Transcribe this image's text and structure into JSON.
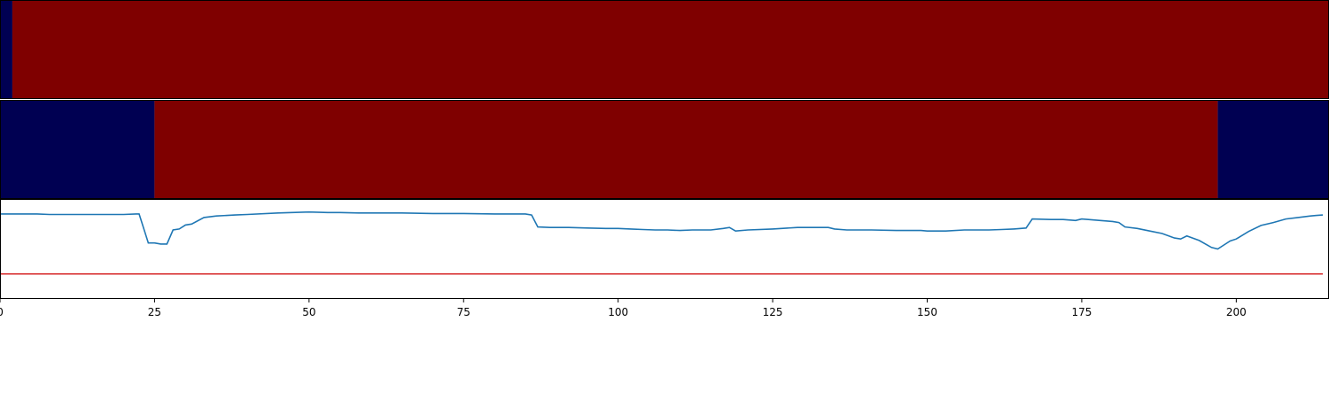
{
  "colors": {
    "low": "#000052",
    "high": "#7f0000",
    "line": "#1f77b4",
    "threshold": "#d62728",
    "background": "#ffffff",
    "axis": "#000000"
  },
  "chart_data": [
    {
      "type": "heatmap",
      "x_range": [
        0,
        215
      ],
      "segments": [
        {
          "start": 0,
          "end": 2,
          "state": "low"
        },
        {
          "start": 2,
          "end": 215,
          "state": "high"
        }
      ]
    },
    {
      "type": "heatmap",
      "x_range": [
        0,
        215
      ],
      "segments": [
        {
          "start": 0,
          "end": 25,
          "state": "low"
        },
        {
          "start": 25,
          "end": 197,
          "state": "high"
        },
        {
          "start": 197,
          "end": 215,
          "state": "high-to-low"
        }
      ],
      "segments_note_removed": true
    },
    {
      "type": "line",
      "xlim": [
        0,
        215
      ],
      "ylim": [
        -1,
        1
      ],
      "grid": false,
      "x": [
        0,
        2,
        4,
        6,
        8,
        10,
        12,
        14,
        16,
        18,
        20,
        22,
        22.5,
        24,
        25,
        26,
        27,
        28,
        29,
        30,
        31,
        33,
        35,
        38,
        40,
        45,
        50,
        53,
        55,
        58,
        60,
        65,
        70,
        75,
        80,
        85,
        86,
        87,
        89,
        90,
        92,
        95,
        98,
        100,
        102,
        104,
        106,
        108,
        110,
        112,
        115,
        117,
        118,
        119,
        121,
        125,
        129,
        130,
        134,
        135,
        137,
        141,
        145,
        147,
        149,
        150,
        153,
        156,
        158,
        160,
        162,
        164,
        166,
        167,
        170,
        172,
        174,
        175,
        178,
        180,
        181,
        182,
        184,
        186,
        188,
        190,
        191,
        192,
        194,
        196,
        197,
        198,
        199,
        200,
        202,
        204,
        206,
        208,
        210,
        212,
        213,
        214
      ],
      "y": [
        0.7,
        0.7,
        0.7,
        0.7,
        0.69,
        0.69,
        0.69,
        0.69,
        0.69,
        0.69,
        0.69,
        0.7,
        0.7,
        0.12,
        0.12,
        0.1,
        0.1,
        0.38,
        0.4,
        0.48,
        0.5,
        0.63,
        0.66,
        0.68,
        0.69,
        0.72,
        0.74,
        0.73,
        0.73,
        0.72,
        0.72,
        0.72,
        0.71,
        0.71,
        0.7,
        0.7,
        0.68,
        0.44,
        0.43,
        0.43,
        0.43,
        0.42,
        0.41,
        0.41,
        0.4,
        0.39,
        0.38,
        0.38,
        0.37,
        0.38,
        0.38,
        0.41,
        0.43,
        0.36,
        0.38,
        0.4,
        0.43,
        0.43,
        0.43,
        0.4,
        0.38,
        0.38,
        0.37,
        0.37,
        0.37,
        0.36,
        0.36,
        0.38,
        0.38,
        0.38,
        0.39,
        0.4,
        0.42,
        0.6,
        0.59,
        0.59,
        0.57,
        0.6,
        0.57,
        0.55,
        0.53,
        0.44,
        0.41,
        0.36,
        0.31,
        0.22,
        0.2,
        0.26,
        0.17,
        0.03,
        0.0,
        0.08,
        0.16,
        0.2,
        0.35,
        0.47,
        0.53,
        0.6,
        0.63,
        0.66,
        0.67,
        0.68
      ],
      "threshold": -0.5,
      "x_ticks": [
        0,
        25,
        50,
        75,
        100,
        125,
        150,
        175,
        200
      ]
    }
  ]
}
